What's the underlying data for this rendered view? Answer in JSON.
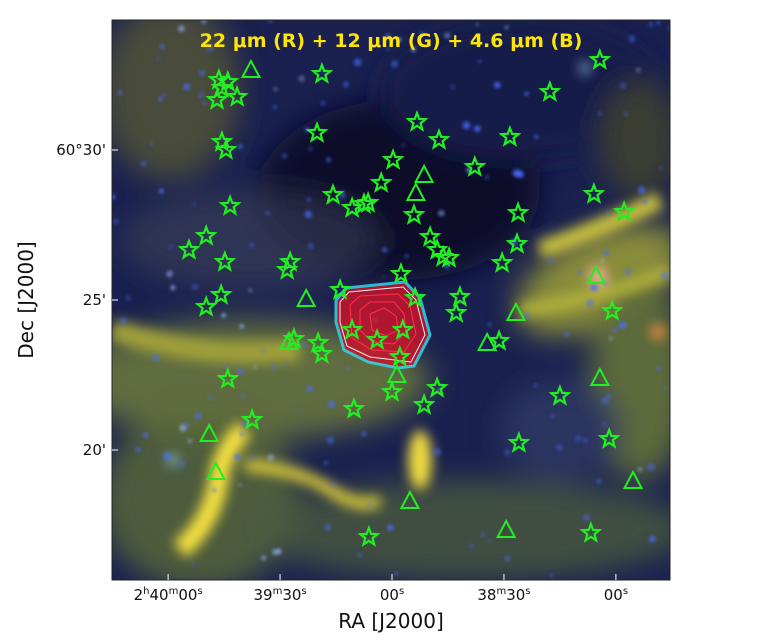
{
  "chart_data": {
    "type": "scatter",
    "title": "22 μm (R) + 12 μm (G) + 4.6 μm (B)",
    "title_color": "#ffe600",
    "xlabel": "RA [J2000]",
    "ylabel": "Dec [J2000]",
    "x_ticks": [
      {
        "value": "02:40:00",
        "parts": [
          "2",
          "h",
          "40",
          "m",
          "00",
          "s"
        ]
      },
      {
        "value": "02:39:30",
        "parts": [
          "39",
          "m",
          "30",
          "s"
        ]
      },
      {
        "value": "02:39:00",
        "parts": [
          "00",
          "s"
        ]
      },
      {
        "value": "02:38:30",
        "parts": [
          "38",
          "m",
          "30",
          "s"
        ]
      },
      {
        "value": "02:38:00",
        "parts": [
          "00",
          "s"
        ]
      }
    ],
    "y_ticks": [
      {
        "value": "+60:30:00",
        "label": "60°30'"
      },
      {
        "value": "+60:25:00",
        "label": "25'"
      },
      {
        "value": "+60:20:00",
        "label": "20'"
      }
    ],
    "xlim": [
      "02:40:06",
      "02:37:50"
    ],
    "ylim": [
      "+60:15:40",
      "+60:34:20"
    ],
    "marker_color": "#22ee22",
    "contour_colors": [
      "#e0102a",
      "#33d6e8",
      "#f0f0f0"
    ],
    "series": [
      {
        "marker": "star",
        "points": [
          [
            "02:39:46.4",
            "+60:32:20"
          ],
          [
            "02:39:44.0",
            "+60:32:16"
          ],
          [
            "02:39:46.9",
            "+60:31:40"
          ],
          [
            "02:39:41.5",
            "+60:31:46"
          ],
          [
            "02:39:45.6",
            "+60:32:04"
          ],
          [
            "02:39:18.8",
            "+60:32:32"
          ],
          [
            "02:39:20.1",
            "+60:30:34"
          ],
          [
            "02:39:45.6",
            "+60:30:16"
          ],
          [
            "02:39:44.5",
            "+60:30:00"
          ],
          [
            "02:39:43.4",
            "+60:28:08"
          ],
          [
            "02:39:54.4",
            "+60:26:40"
          ],
          [
            "02:39:49.8",
            "+60:27:08"
          ],
          [
            "02:39:44.8",
            "+60:26:16"
          ],
          [
            "02:39:27.3",
            "+60:26:16"
          ],
          [
            "02:39:28.1",
            "+60:26:00"
          ],
          [
            "02:39:45.8",
            "+60:25:10"
          ],
          [
            "02:39:49.8",
            "+60:24:46"
          ],
          [
            "02:38:53.3",
            "+60:30:56"
          ],
          [
            "02:38:47.4",
            "+60:30:20"
          ],
          [
            "02:38:59.7",
            "+60:29:40"
          ],
          [
            "02:39:02.9",
            "+60:28:54"
          ],
          [
            "02:39:15.8",
            "+60:28:30"
          ],
          [
            "02:39:10.7",
            "+60:28:04"
          ],
          [
            "02:39:07.5",
            "+60:28:12"
          ],
          [
            "02:39:06.4",
            "+60:28:14"
          ],
          [
            "02:38:54.1",
            "+60:27:50"
          ],
          [
            "02:38:49.8",
            "+60:27:06"
          ],
          [
            "02:38:47.9",
            "+60:26:40"
          ],
          [
            "02:38:46.3",
            "+60:26:26"
          ],
          [
            "02:38:44.7",
            "+60:26:24"
          ],
          [
            "02:38:37.8",
            "+60:29:26"
          ],
          [
            "02:38:28.4",
            "+60:30:26"
          ],
          [
            "02:38:17.7",
            "+60:31:56"
          ],
          [
            "02:38:04.3",
            "+60:33:00"
          ],
          [
            "02:38:05.9",
            "+60:28:32"
          ],
          [
            "02:37:57.8",
            "+60:27:56"
          ],
          [
            "02:38:26.2",
            "+60:27:54"
          ],
          [
            "02:38:26.5",
            "+60:26:52"
          ],
          [
            "02:38:30.5",
            "+60:26:14"
          ],
          [
            "02:38:57.6",
            "+60:25:52"
          ],
          [
            "02:38:41.8",
            "+60:25:06"
          ],
          [
            "02:38:42.8",
            "+60:24:34"
          ],
          [
            "02:39:26.3",
            "+60:23:42"
          ],
          [
            "02:39:19.8",
            "+60:23:34"
          ],
          [
            "02:39:18.8",
            "+60:23:12"
          ],
          [
            "02:39:44.0",
            "+60:22:22"
          ],
          [
            "02:39:37.5",
            "+60:21:00"
          ],
          [
            "02:39:10.2",
            "+60:21:22"
          ],
          [
            "02:39:00.0",
            "+60:21:56"
          ],
          [
            "02:38:47.9",
            "+60:22:04"
          ],
          [
            "02:38:51.4",
            "+60:21:30"
          ],
          [
            "02:38:31.3",
            "+60:23:38"
          ],
          [
            "02:38:15.0",
            "+60:21:48"
          ],
          [
            "02:38:01.0",
            "+60:24:38"
          ],
          [
            "02:38:01.8",
            "+60:20:22"
          ],
          [
            "02:38:26.0",
            "+60:20:14"
          ],
          [
            "02:38:06.7",
            "+60:17:14"
          ],
          [
            "02:39:06.2",
            "+60:17:06"
          ],
          [
            "02:39:13.9",
            "+60:25:20"
          ],
          [
            "02:39:10.7",
            "+60:24:00"
          ],
          [
            "02:39:04.0",
            "+60:23:40"
          ],
          [
            "02:38:57.1",
            "+60:24:00"
          ],
          [
            "02:38:57.9",
            "+60:23:06"
          ],
          [
            "02:38:53.8",
            "+60:25:04"
          ]
        ]
      },
      {
        "marker": "triangle",
        "points": [
          [
            "02:39:37.8",
            "+60:32:40"
          ],
          [
            "02:38:51.4",
            "+60:29:10"
          ],
          [
            "02:38:53.6",
            "+60:28:34"
          ],
          [
            "02:39:23.0",
            "+60:25:02"
          ],
          [
            "02:39:27.6",
            "+60:23:36"
          ],
          [
            "02:38:26.8",
            "+60:24:34"
          ],
          [
            "02:38:34.5",
            "+60:23:34"
          ],
          [
            "02:38:05.3",
            "+60:25:48"
          ],
          [
            "02:38:04.3",
            "+60:22:24"
          ],
          [
            "02:39:49.0",
            "+60:20:32"
          ],
          [
            "02:39:47.2",
            "+60:19:16"
          ],
          [
            "02:38:55.2",
            "+60:18:18"
          ],
          [
            "02:38:29.4",
            "+60:17:20"
          ],
          [
            "02:37:55.4",
            "+60:18:58"
          ],
          [
            "02:38:58.7",
            "+60:22:30"
          ]
        ]
      }
    ]
  }
}
